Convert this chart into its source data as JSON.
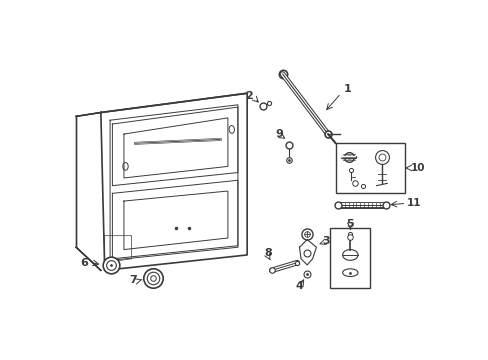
{
  "background_color": "#ffffff",
  "line_color": "#3a3a3a",
  "figure_width": 4.89,
  "figure_height": 3.6,
  "dpi": 100
}
